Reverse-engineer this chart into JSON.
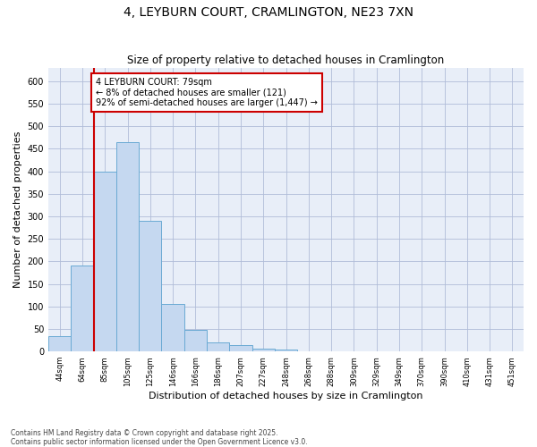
{
  "title1": "4, LEYBURN COURT, CRAMLINGTON, NE23 7XN",
  "title2": "Size of property relative to detached houses in Cramlington",
  "xlabel": "Distribution of detached houses by size in Cramlington",
  "ylabel": "Number of detached properties",
  "annotation_line1": "4 LEYBURN COURT: 79sqm",
  "annotation_line2": "← 8% of detached houses are smaller (121)",
  "annotation_line3": "92% of semi-detached houses are larger (1,447) →",
  "bar_color": "#c5d8f0",
  "bar_edge_color": "#6aaad4",
  "vline_color": "#cc0000",
  "annotation_box_edge": "#cc0000",
  "bg_color": "#e8eef8",
  "fig_bg": "#ffffff",
  "grid_color": "#b0bcd8",
  "categories": [
    "44sqm",
    "64sqm",
    "85sqm",
    "105sqm",
    "125sqm",
    "146sqm",
    "166sqm",
    "186sqm",
    "207sqm",
    "227sqm",
    "248sqm",
    "268sqm",
    "288sqm",
    "309sqm",
    "329sqm",
    "349sqm",
    "370sqm",
    "390sqm",
    "410sqm",
    "431sqm",
    "451sqm"
  ],
  "values": [
    35,
    190,
    400,
    465,
    290,
    105,
    48,
    20,
    14,
    7,
    5,
    1,
    1,
    0,
    0,
    0,
    0,
    1,
    0,
    0,
    1
  ],
  "ylim": [
    0,
    630
  ],
  "yticks": [
    0,
    50,
    100,
    150,
    200,
    250,
    300,
    350,
    400,
    450,
    500,
    550,
    600
  ],
  "vline_x": 1.5,
  "footer1": "Contains HM Land Registry data © Crown copyright and database right 2025.",
  "footer2": "Contains public sector information licensed under the Open Government Licence v3.0."
}
